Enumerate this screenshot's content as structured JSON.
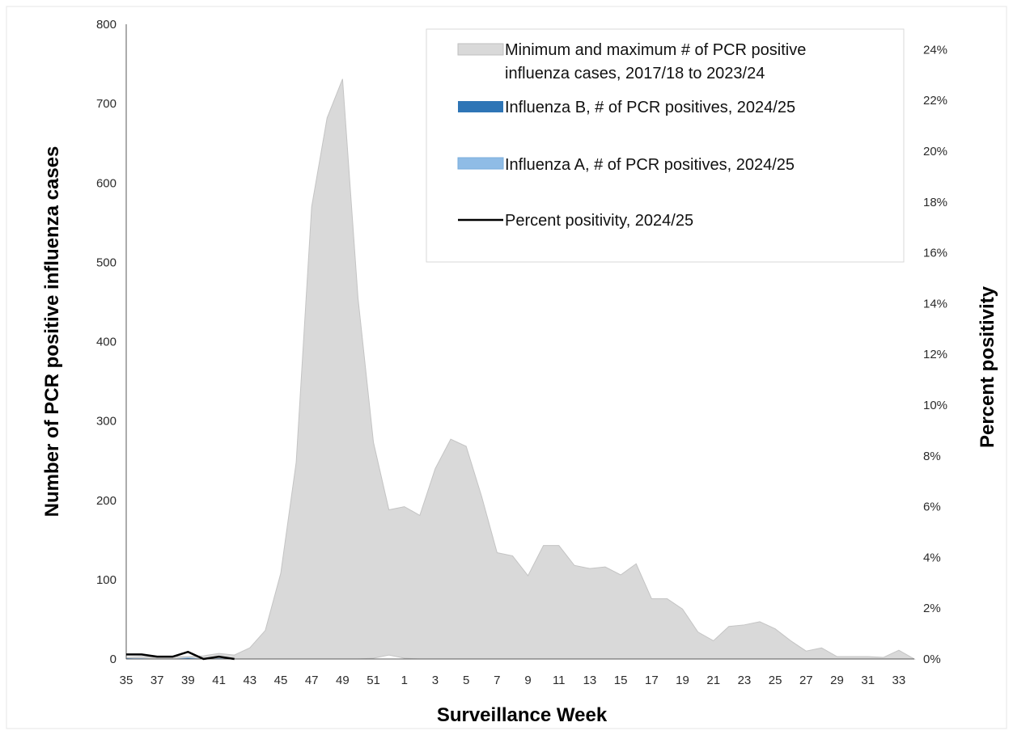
{
  "chart_data": {
    "type": "area",
    "xlabel": "Surveillance Week",
    "ylabel": "Number of PCR positive influenza cases",
    "y2label": "Percent positivity",
    "ylim": [
      0,
      800
    ],
    "y_ticks": [
      "0",
      "100",
      "200",
      "300",
      "400",
      "500",
      "600",
      "700",
      "800"
    ],
    "y2lim": [
      0,
      0.25
    ],
    "y2_ticks": [
      "0%",
      "2%",
      "4%",
      "6%",
      "8%",
      "10%",
      "12%",
      "14%",
      "16%",
      "18%",
      "20%",
      "22%",
      "24%"
    ],
    "x_weeks": [
      35,
      36,
      37,
      38,
      39,
      40,
      41,
      42,
      43,
      44,
      45,
      46,
      47,
      48,
      49,
      50,
      51,
      52,
      1,
      2,
      3,
      4,
      5,
      6,
      7,
      8,
      9,
      10,
      11,
      12,
      13,
      14,
      15,
      16,
      17,
      18,
      19,
      20,
      21,
      22,
      23,
      24,
      25,
      26,
      27,
      28,
      29,
      30,
      31,
      32,
      33,
      34
    ],
    "x_tick_labels": [
      "35",
      "37",
      "39",
      "41",
      "43",
      "45",
      "47",
      "49",
      "51",
      "1",
      "3",
      "5",
      "7",
      "9",
      "11",
      "13",
      "15",
      "17",
      "19",
      "21",
      "23",
      "25",
      "27",
      "29",
      "31",
      "33"
    ],
    "grid": false,
    "legend_position": "top-right",
    "legend": [
      {
        "label_line1": "Minimum and maximum # of PCR positive",
        "label_line2": "influenza cases, 2017/18 to 2023/24",
        "color": "#d9d9d9"
      },
      {
        "label_line1": "Influenza B, # of PCR positives, 2024/25",
        "label_line2": "",
        "color": "#2e75b6"
      },
      {
        "label_line1": "Influenza A, # of PCR positives, 2024/25",
        "label_line2": "",
        "color": "#8fbce6"
      },
      {
        "label_line1": "Percent positivity, 2024/25",
        "label_line2": "",
        "color": "#000000"
      }
    ],
    "series": [
      {
        "name": "Minimum and maximum # of PCR positive influenza cases, 2017/18 to 2023/24",
        "kind": "range-area",
        "color": "#d9d9d9",
        "max": [
          2,
          3,
          2,
          3,
          3,
          4,
          7,
          5,
          14,
          36,
          108,
          248,
          570,
          682,
          731,
          455,
          273,
          188,
          192,
          181,
          240,
          277,
          268,
          205,
          134,
          130,
          105,
          143,
          143,
          118,
          114,
          116,
          106,
          120,
          76,
          76,
          63,
          34,
          23,
          41,
          43,
          47,
          38,
          23,
          10,
          14,
          3,
          3,
          3,
          2,
          11,
          0
        ],
        "min": [
          0,
          0,
          0,
          0,
          0,
          0,
          0,
          0,
          0,
          0,
          0,
          0,
          0,
          0,
          0,
          0,
          1,
          5,
          1,
          0,
          0,
          0,
          0,
          0,
          0,
          0,
          0,
          0,
          0,
          0,
          0,
          0,
          0,
          0,
          0,
          0,
          0,
          0,
          0,
          0,
          0,
          0,
          0,
          0,
          0,
          0,
          0,
          0,
          0,
          0,
          0,
          0
        ]
      },
      {
        "name": "Influenza B, # of PCR positives, 2024/25",
        "kind": "area",
        "color": "#2e75b6",
        "values": [
          1,
          0,
          0,
          0,
          1,
          0,
          0,
          0
        ]
      },
      {
        "name": "Influenza A, # of PCR positives, 2024/25",
        "kind": "area",
        "color": "#8fbce6",
        "values": [
          1,
          1,
          0,
          0,
          2,
          0,
          1,
          0
        ]
      },
      {
        "name": "Percent positivity, 2024/25",
        "kind": "line",
        "axis": "right",
        "color": "#000000",
        "values": [
          0.0018,
          0.0018,
          0.0009,
          0.0009,
          0.0028,
          0.0,
          0.0009,
          0.0
        ]
      }
    ]
  }
}
